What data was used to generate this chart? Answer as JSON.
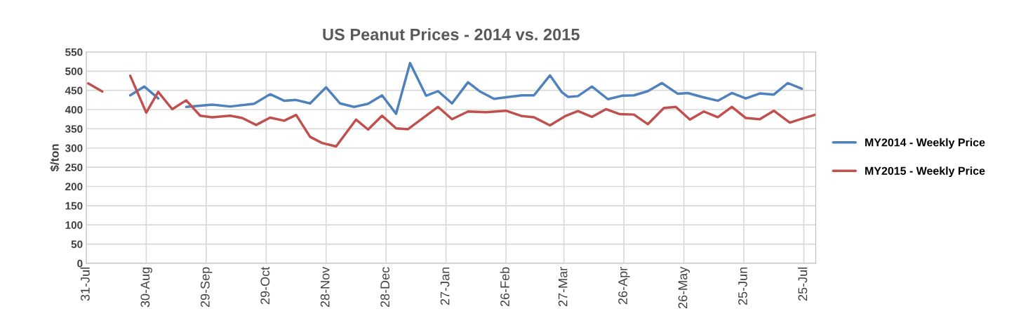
{
  "chart_data": {
    "type": "line",
    "title": "US Peanut Prices - 2014 vs. 2015",
    "ylabel": "$/ton",
    "xlim": [
      "2014-07-31",
      "2015-07-31"
    ],
    "xticks": [
      {
        "value": "2014-07-31",
        "label": "31-Jul"
      },
      {
        "value": "2014-08-30",
        "label": "30-Aug"
      },
      {
        "value": "2014-09-29",
        "label": "29-Sep"
      },
      {
        "value": "2014-10-29",
        "label": "29-Oct"
      },
      {
        "value": "2014-11-28",
        "label": "28-Nov"
      },
      {
        "value": "2014-12-28",
        "label": "28-Dec"
      },
      {
        "value": "2015-01-27",
        "label": "27-Jan"
      },
      {
        "value": "2015-02-26",
        "label": "26-Feb"
      },
      {
        "value": "2015-03-27",
        "label": "27-Mar"
      },
      {
        "value": "2015-04-26",
        "label": "26-Apr"
      },
      {
        "value": "2015-05-26",
        "label": "26-May"
      },
      {
        "value": "2015-06-25",
        "label": "25-Jun"
      },
      {
        "value": "2015-07-25",
        "label": "25-Jul"
      }
    ],
    "ylim": [
      0,
      550
    ],
    "yticks": [
      0,
      50,
      100,
      150,
      200,
      250,
      300,
      350,
      400,
      450,
      500,
      550
    ],
    "grid": true,
    "legend": "right",
    "marker": "none",
    "line_style": "solid",
    "series": [
      {
        "name": "MY2014 - Weekly Price",
        "color": "#4f81bd",
        "x": [
          "2014-08-22",
          "2014-08-29",
          "2014-09-05",
          "2014-09-12",
          "2014-09-19",
          "2014-10-02",
          "2014-10-11",
          "2014-10-23",
          "2014-10-31",
          "2014-11-07",
          "2014-11-13",
          "2014-11-20",
          "2014-11-28",
          "2014-12-05",
          "2014-12-12",
          "2014-12-19",
          "2014-12-26",
          "2015-01-02",
          "2015-01-09",
          "2015-01-17",
          "2015-01-23",
          "2015-01-30",
          "2015-02-07",
          "2015-02-13",
          "2015-02-20",
          "2015-02-26",
          "2015-03-06",
          "2015-03-12",
          "2015-03-20",
          "2015-03-26",
          "2015-03-29",
          "2015-04-03",
          "2015-04-10",
          "2015-04-18",
          "2015-04-25",
          "2015-05-01",
          "2015-05-08",
          "2015-05-15",
          "2015-05-23",
          "2015-05-28",
          "2015-06-04",
          "2015-06-12",
          "2015-06-19",
          "2015-06-26",
          "2015-07-03",
          "2015-07-10",
          "2015-07-17",
          "2015-07-24"
        ],
        "values": [
          437,
          460,
          429,
          null,
          407,
          413,
          408,
          415,
          440,
          423,
          425,
          416,
          458,
          416,
          407,
          415,
          437,
          389,
          521,
          436,
          448,
          416,
          471,
          447,
          428,
          432,
          437,
          437,
          489,
          445,
          433,
          435,
          460,
          427,
          436,
          437,
          448,
          469,
          441,
          443,
          433,
          423,
          443,
          429,
          442,
          439,
          469,
          454
        ]
      },
      {
        "name": "MY2015 - Weekly Price",
        "color": "#c0504d",
        "x": [
          "2014-08-01",
          "2014-08-08",
          "2014-08-15",
          "2014-08-22",
          "2014-08-30",
          "2014-09-05",
          "2014-09-12",
          "2014-09-19",
          "2014-09-26",
          "2014-10-02",
          "2014-10-11",
          "2014-10-17",
          "2014-10-24",
          "2014-10-31",
          "2014-11-07",
          "2014-11-13",
          "2014-11-20",
          "2014-11-26",
          "2014-12-03",
          "2014-12-13",
          "2014-12-19",
          "2014-12-26",
          "2015-01-02",
          "2015-01-08",
          "2015-01-23",
          "2015-01-30",
          "2015-02-07",
          "2015-02-16",
          "2015-02-21",
          "2015-02-26",
          "2015-03-06",
          "2015-03-12",
          "2015-03-20",
          "2015-03-28",
          "2015-04-03",
          "2015-04-10",
          "2015-04-17",
          "2015-04-24",
          "2015-05-01",
          "2015-05-08",
          "2015-05-16",
          "2015-05-22",
          "2015-05-29",
          "2015-06-05",
          "2015-06-12",
          "2015-06-19",
          "2015-06-26",
          "2015-07-03",
          "2015-07-10",
          "2015-07-18",
          "2015-07-24",
          "2015-07-31"
        ],
        "values": [
          468,
          447,
          null,
          488,
          392,
          446,
          401,
          424,
          384,
          380,
          384,
          378,
          360,
          379,
          371,
          386,
          329,
          313,
          304,
          374,
          348,
          384,
          351,
          349,
          407,
          375,
          395,
          393,
          395,
          397,
          383,
          380,
          359,
          384,
          396,
          381,
          401,
          388,
          387,
          362,
          404,
          407,
          374,
          395,
          380,
          407,
          378,
          375,
          397,
          366,
          376,
          387
        ]
      }
    ]
  }
}
